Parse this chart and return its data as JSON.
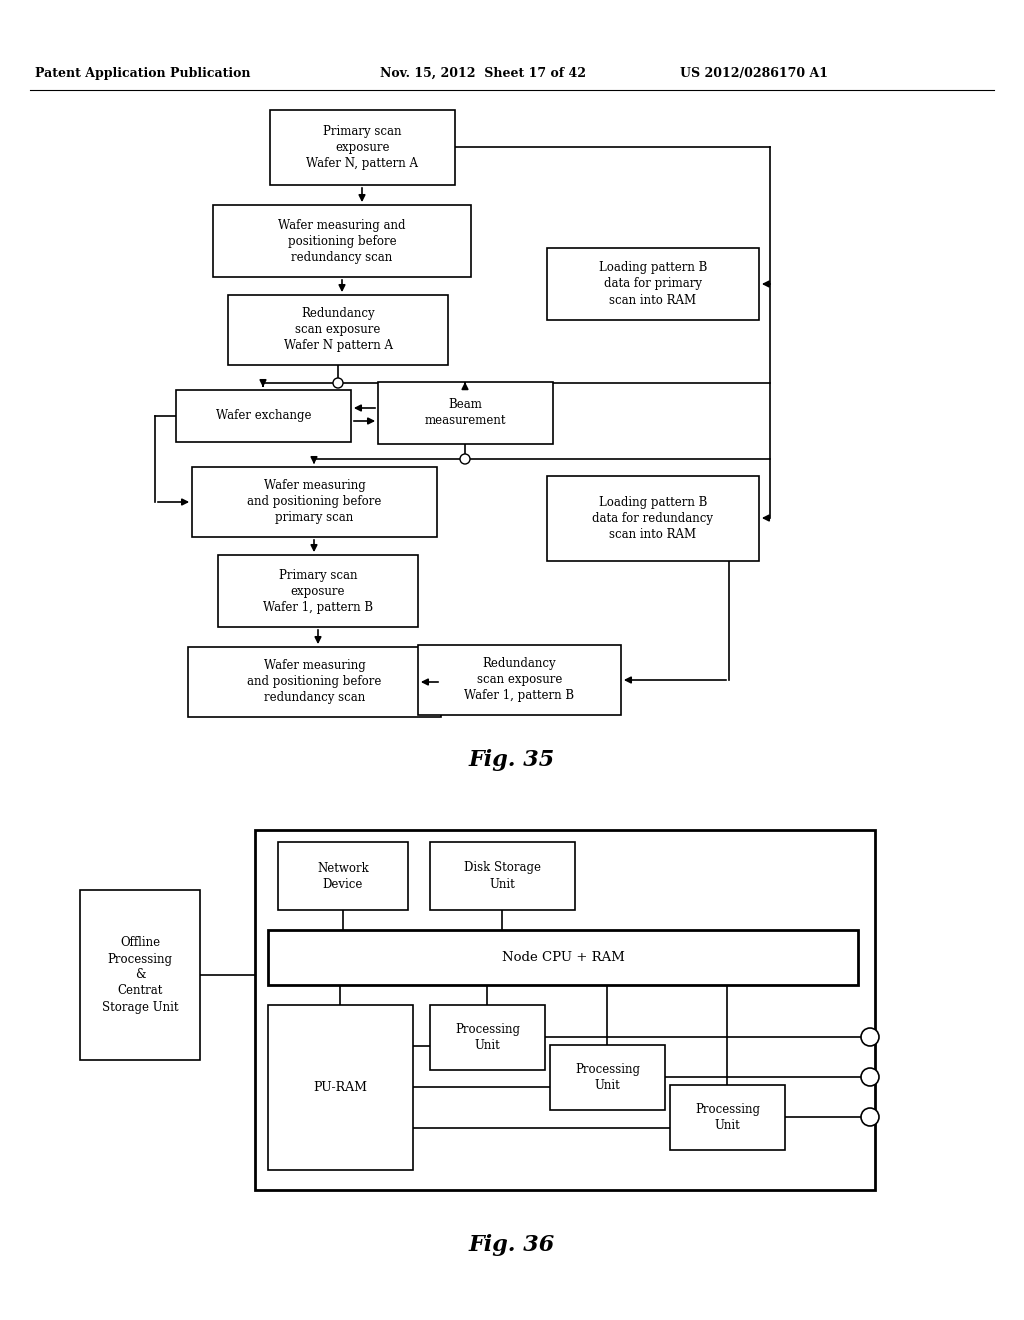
{
  "header_left": "Patent Application Publication",
  "header_mid": "Nov. 15, 2012  Sheet 17 of 42",
  "header_right": "US 2012/0286170 A1",
  "fig35_label": "Fig. 35",
  "fig36_label": "Fig. 36",
  "bg_color": "#ffffff"
}
